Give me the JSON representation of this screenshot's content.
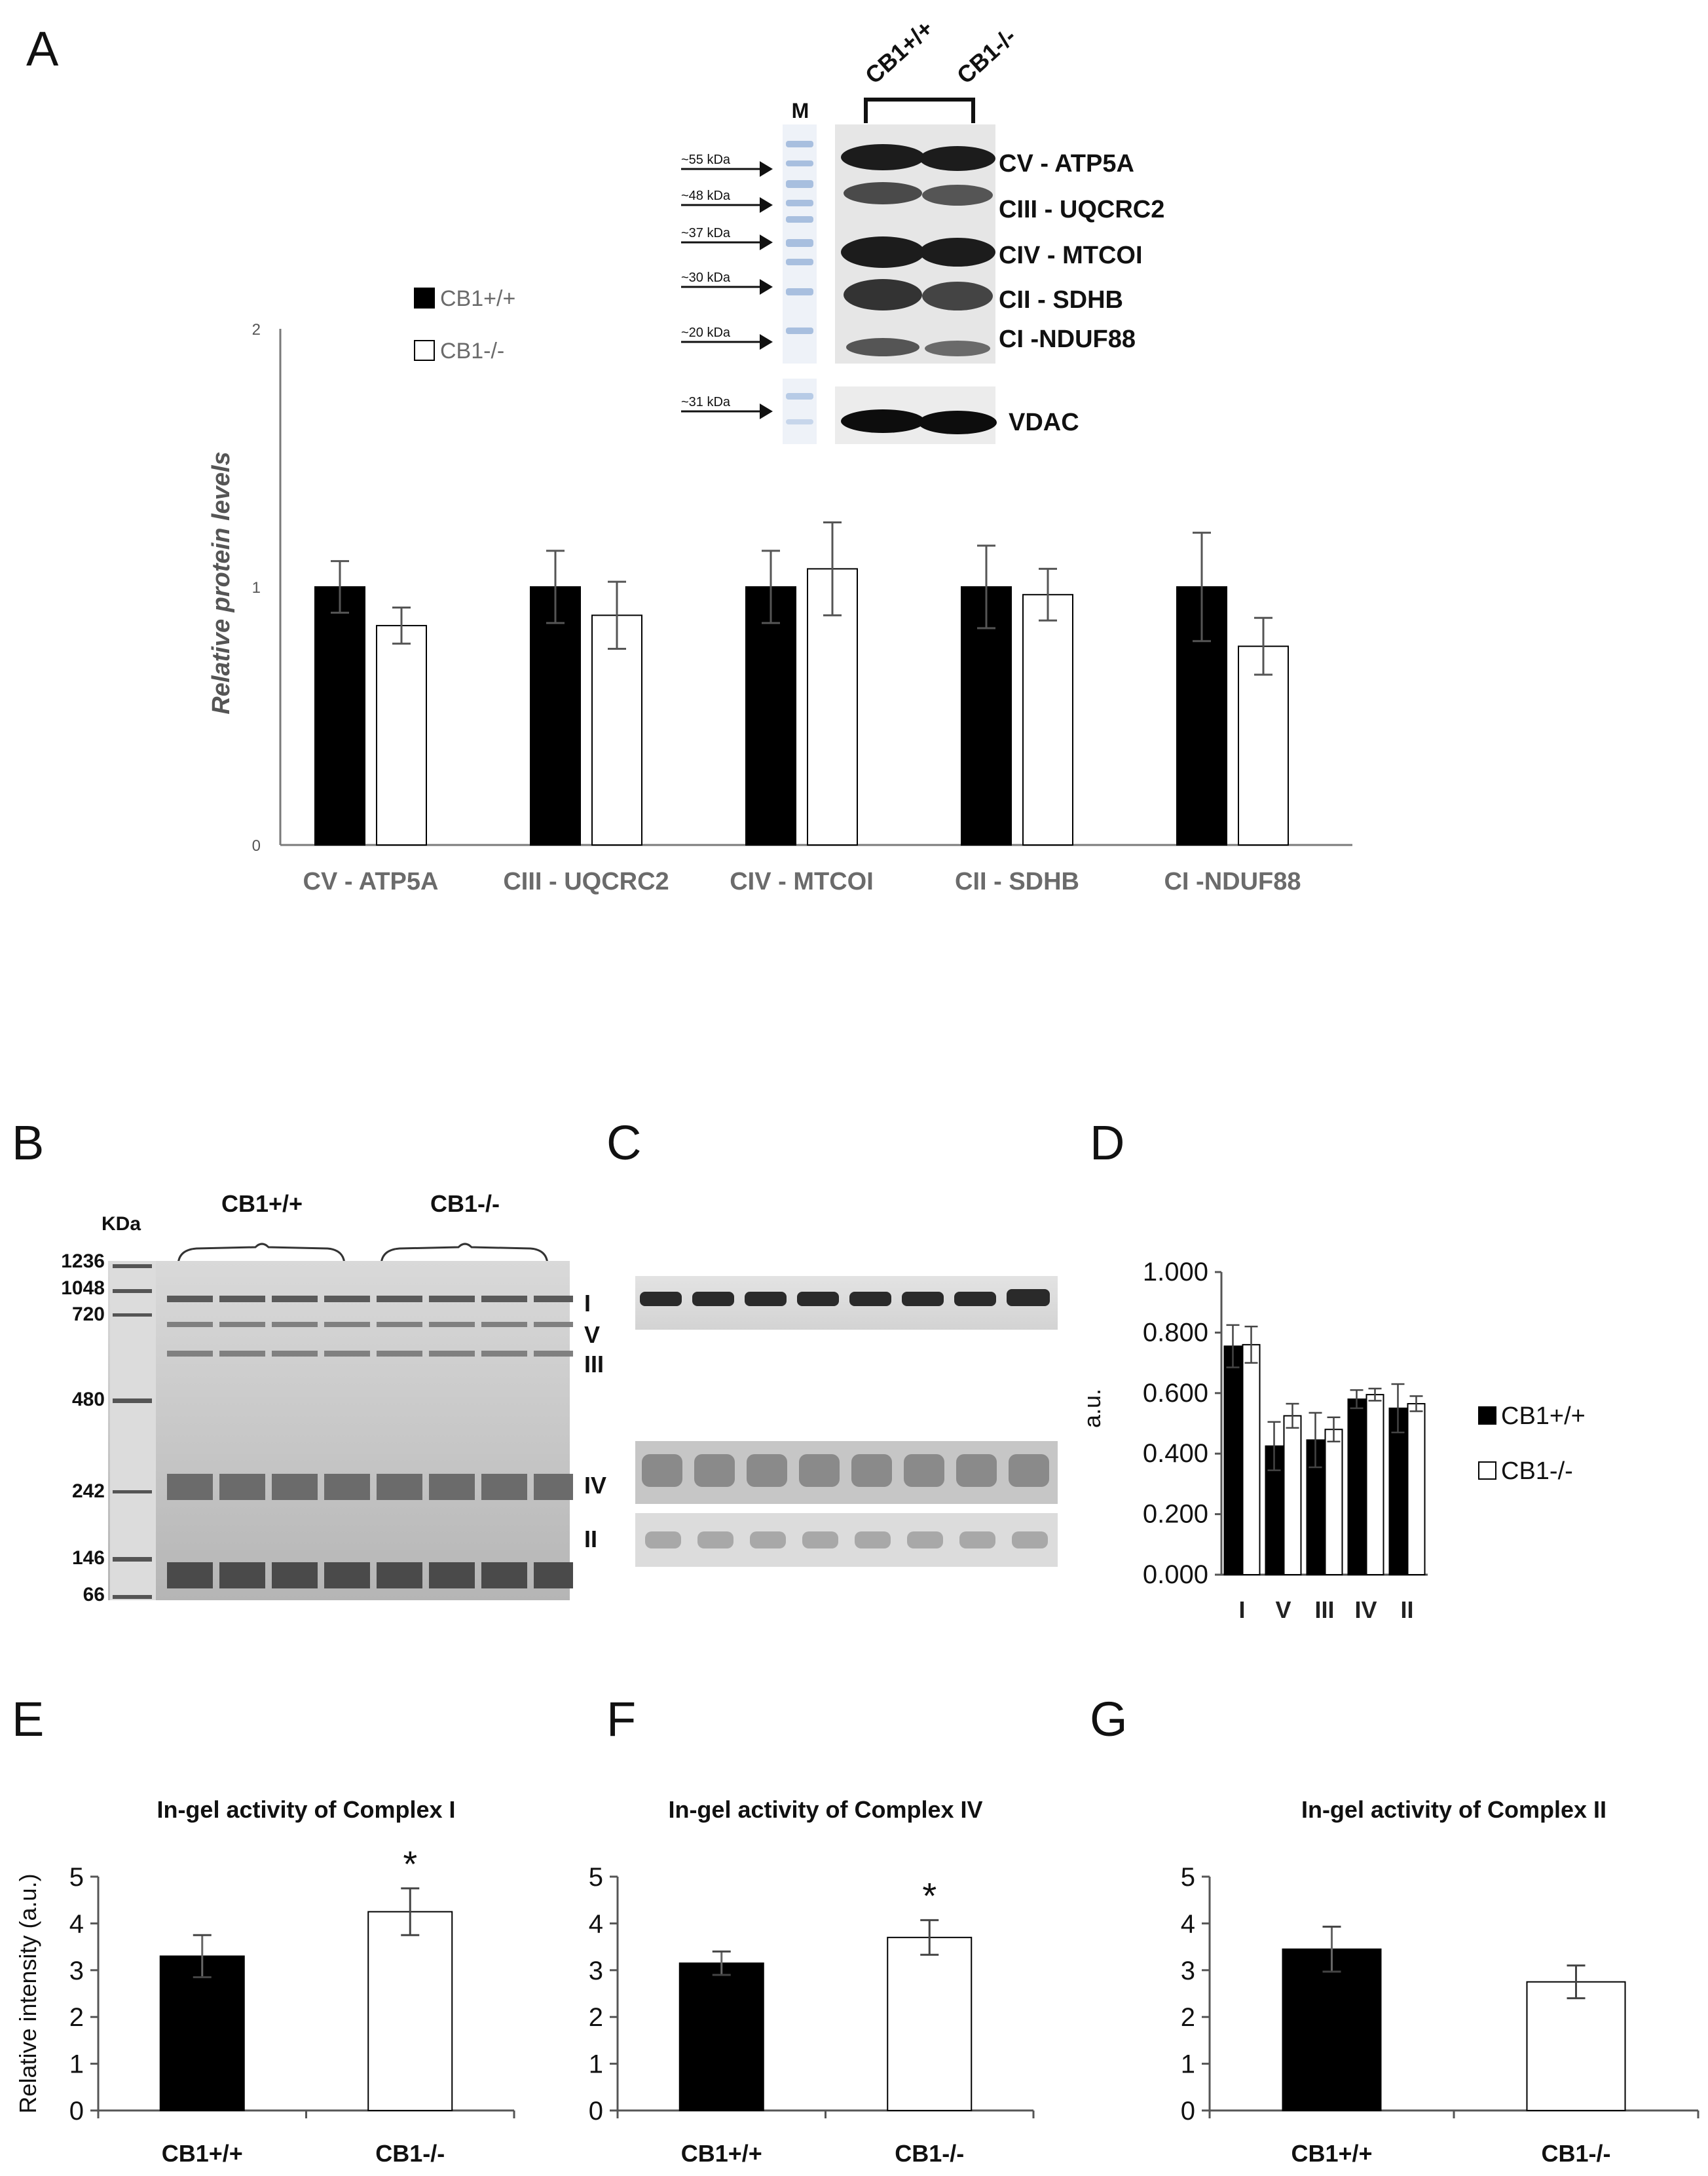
{
  "panels": {
    "A": "A",
    "B": "B",
    "C": "C",
    "D": "D",
    "E": "E",
    "F": "F",
    "G": "G"
  },
  "colors": {
    "wt": "#000000",
    "ko": "#ffffff",
    "axis": "#808080",
    "error": "#555555"
  },
  "blot_a": {
    "marker_label": "M",
    "group_labels": [
      "CB1+/+",
      "CB1-/-"
    ],
    "kda_labels": [
      "~55 kDa",
      "~48 kDa",
      "~37 kDa",
      "~30 kDa",
      "~20 kDa",
      "~31 kDa"
    ],
    "band_labels": [
      "CV - ATP5A",
      "CIII - UQCRC2",
      "CIV - MTCOI",
      "CII - SDHB",
      "CI -NDUF88",
      "VDAC"
    ]
  },
  "gel_b": {
    "unit_label": "KDa",
    "group_labels": [
      "CB1+/+",
      "CB1-/-"
    ],
    "marker_labels": [
      "1236",
      "1048",
      "720",
      "480",
      "242",
      "146",
      "66"
    ],
    "complex_labels": [
      "I",
      "V",
      "III",
      "IV",
      "II"
    ]
  },
  "chart_data": [
    {
      "id": "A",
      "type": "bar",
      "title": "",
      "xlabel": "",
      "ylabel": "Relative protein levels",
      "ylim": [
        0,
        2
      ],
      "yticks": [
        "0",
        "1",
        "2"
      ],
      "categories": [
        "CV - ATP5A",
        "CIII - UQCRC2",
        "CIV - MTCOI",
        "CII - SDHB",
        "CI -NDUF88"
      ],
      "series": [
        {
          "name": "CB1+/+",
          "values": [
            1.0,
            1.0,
            1.0,
            1.0,
            1.0
          ],
          "errors": [
            0.1,
            0.14,
            0.14,
            0.16,
            0.21
          ]
        },
        {
          "name": "CB1-/-",
          "values": [
            0.85,
            0.89,
            1.07,
            0.97,
            0.77
          ],
          "errors": [
            0.07,
            0.13,
            0.18,
            0.1,
            0.11
          ]
        }
      ],
      "legend": "top-left"
    },
    {
      "id": "D",
      "type": "bar",
      "title": "",
      "xlabel": "",
      "ylabel": "a.u.",
      "ylim": [
        0,
        1
      ],
      "yticks": [
        "0.000",
        "0.200",
        "0.400",
        "0.600",
        "0.800",
        "1.000"
      ],
      "categories": [
        "I",
        "V",
        "III",
        "IV",
        "II"
      ],
      "series": [
        {
          "name": "CB1+/+",
          "values": [
            0.755,
            0.425,
            0.445,
            0.58,
            0.55
          ],
          "errors": [
            0.07,
            0.08,
            0.09,
            0.03,
            0.08
          ]
        },
        {
          "name": "CB1-/-",
          "values": [
            0.76,
            0.525,
            0.48,
            0.595,
            0.565
          ],
          "errors": [
            0.06,
            0.04,
            0.04,
            0.02,
            0.025
          ]
        }
      ],
      "legend": "right"
    },
    {
      "id": "E",
      "type": "bar",
      "title": "In-gel activity of Complex I",
      "xlabel": "",
      "ylabel": "Relative intensity (a.u.)",
      "ylim": [
        0,
        5
      ],
      "yticks": [
        "0",
        "1",
        "2",
        "3",
        "4",
        "5"
      ],
      "categories": [
        "CB1+/+",
        "CB1-/-"
      ],
      "values": [
        3.3,
        4.25
      ],
      "errors": [
        0.45,
        0.5
      ],
      "annotations": [
        "",
        "*"
      ]
    },
    {
      "id": "F",
      "type": "bar",
      "title": "In-gel activity of Complex IV",
      "xlabel": "",
      "ylabel": "",
      "ylim": [
        0,
        5
      ],
      "yticks": [
        "0",
        "1",
        "2",
        "3",
        "4",
        "5"
      ],
      "categories": [
        "CB1+/+",
        "CB1-/-"
      ],
      "values": [
        3.15,
        3.7
      ],
      "errors": [
        0.25,
        0.37
      ],
      "annotations": [
        "",
        "*"
      ]
    },
    {
      "id": "G",
      "type": "bar",
      "title": "In-gel activity of Complex II",
      "xlabel": "",
      "ylabel": "",
      "ylim": [
        0,
        5
      ],
      "yticks": [
        "0",
        "1",
        "2",
        "3",
        "4",
        "5"
      ],
      "categories": [
        "CB1+/+",
        "CB1-/-"
      ],
      "values": [
        3.45,
        2.75
      ],
      "errors": [
        0.48,
        0.35
      ],
      "annotations": [
        "",
        ""
      ]
    }
  ]
}
